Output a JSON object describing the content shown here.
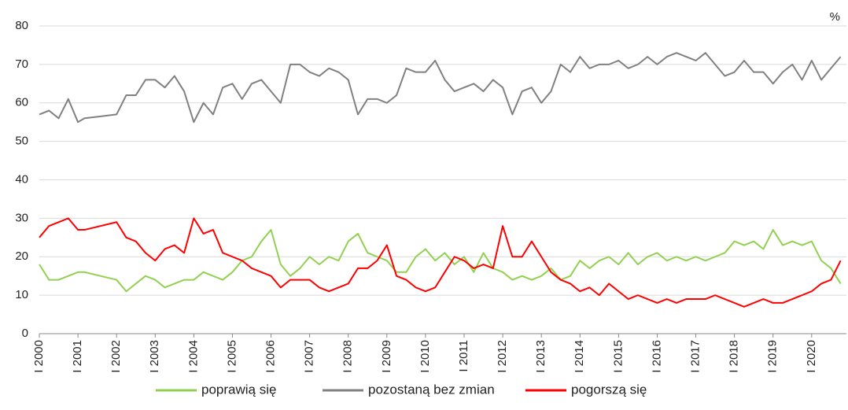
{
  "chart_data": {
    "type": "line",
    "unit": "%",
    "x": [
      2000,
      2000.25,
      2000.5,
      2000.75,
      2001,
      2001.17,
      2002,
      2002.25,
      2002.5,
      2002.75,
      2003,
      2003.25,
      2003.5,
      2003.75,
      2004,
      2004.25,
      2004.5,
      2004.75,
      2005,
      2005.25,
      2005.5,
      2005.75,
      2006,
      2006.25,
      2006.5,
      2006.75,
      2007,
      2007.25,
      2007.5,
      2007.75,
      2008,
      2008.25,
      2008.5,
      2008.75,
      2009,
      2009.25,
      2009.5,
      2009.75,
      2010,
      2010.25,
      2010.5,
      2010.75,
      2011,
      2011.25,
      2011.5,
      2011.75,
      2012,
      2012.25,
      2012.5,
      2012.75,
      2013,
      2013.25,
      2013.5,
      2013.75,
      2014,
      2014.25,
      2014.5,
      2014.75,
      2015,
      2015.25,
      2015.5,
      2015.75,
      2016,
      2016.25,
      2016.5,
      2016.75,
      2017,
      2017.25,
      2017.5,
      2017.75,
      2018,
      2018.25,
      2018.5,
      2018.75,
      2019,
      2019.25,
      2019.5,
      2019.75,
      2020,
      2020.25,
      2020.5,
      2020.75
    ],
    "series": [
      {
        "name": "poprawią się",
        "color": "#92d050",
        "values": [
          18,
          14,
          14,
          15,
          16,
          16,
          14,
          11,
          13,
          15,
          14,
          12,
          13,
          14,
          14,
          16,
          15,
          14,
          16,
          19,
          20,
          24,
          27,
          18,
          15,
          17,
          20,
          18,
          20,
          19,
          24,
          26,
          21,
          20,
          19,
          16,
          16,
          20,
          22,
          19,
          21,
          18,
          20,
          16,
          21,
          17,
          16,
          14,
          15,
          14,
          15,
          17,
          14,
          15,
          19,
          17,
          19,
          20,
          18,
          21,
          18,
          20,
          21,
          19,
          20,
          19,
          20,
          19,
          20,
          21,
          24,
          23,
          24,
          22,
          27,
          23,
          24,
          23,
          24,
          19,
          17,
          13
        ]
      },
      {
        "name": "pozostaną bez zmian",
        "color": "#808080",
        "values": [
          57,
          58,
          56,
          61,
          55,
          56,
          57,
          62,
          62,
          66,
          66,
          64,
          67,
          63,
          55,
          60,
          57,
          64,
          65,
          61,
          65,
          66,
          63,
          60,
          70,
          70,
          68,
          67,
          69,
          68,
          66,
          57,
          61,
          61,
          60,
          62,
          69,
          68,
          68,
          71,
          66,
          63,
          64,
          65,
          63,
          66,
          64,
          57,
          63,
          64,
          60,
          63,
          70,
          68,
          72,
          69,
          70,
          70,
          71,
          69,
          70,
          72,
          70,
          72,
          73,
          72,
          71,
          73,
          70,
          67,
          68,
          71,
          68,
          68,
          65,
          68,
          70,
          66,
          71,
          66,
          69,
          72
        ]
      },
      {
        "name": "pogorszą się",
        "color": "#ff0000",
        "values": [
          25,
          28,
          29,
          30,
          27,
          27,
          29,
          25,
          24,
          21,
          19,
          22,
          23,
          21,
          30,
          26,
          27,
          21,
          20,
          19,
          17,
          16,
          15,
          12,
          14,
          14,
          14,
          12,
          11,
          12,
          13,
          17,
          17,
          19,
          23,
          15,
          14,
          12,
          11,
          12,
          16,
          20,
          19,
          17,
          18,
          17,
          28,
          20,
          20,
          24,
          20,
          16,
          14,
          13,
          11,
          12,
          10,
          13,
          11,
          9,
          10,
          9,
          8,
          9,
          8,
          9,
          9,
          9,
          10,
          9,
          8,
          7,
          8,
          9,
          8,
          8,
          9,
          10,
          11,
          13,
          14,
          19
        ]
      }
    ],
    "xlim": [
      2000,
      2020.9
    ],
    "xticks": [
      {
        "value": 2000,
        "label": "I 2000"
      },
      {
        "value": 2001,
        "label": "I 2001"
      },
      {
        "value": 2002,
        "label": "I 2002"
      },
      {
        "value": 2003,
        "label": "I 2003"
      },
      {
        "value": 2004,
        "label": "I 2004"
      },
      {
        "value": 2005,
        "label": "I 2005"
      },
      {
        "value": 2006,
        "label": "I 2006"
      },
      {
        "value": 2007,
        "label": "I 2007"
      },
      {
        "value": 2008,
        "label": "I 2008"
      },
      {
        "value": 2009,
        "label": "I 2009"
      },
      {
        "value": 2010,
        "label": "I 2010"
      },
      {
        "value": 2011,
        "label": "I 2011"
      },
      {
        "value": 2012,
        "label": "I 2012"
      },
      {
        "value": 2013,
        "label": "I 2013"
      },
      {
        "value": 2014,
        "label": "I 2014"
      },
      {
        "value": 2015,
        "label": "I 2015"
      },
      {
        "value": 2016,
        "label": "I 2016"
      },
      {
        "value": 2017,
        "label": "I 2017"
      },
      {
        "value": 2018,
        "label": "I 2018"
      },
      {
        "value": 2019,
        "label": "I 2019"
      },
      {
        "value": 2020,
        "label": "I 2020"
      }
    ],
    "ylim": [
      0,
      80
    ],
    "yticks": [
      0,
      10,
      20,
      30,
      40,
      50,
      60,
      70,
      80
    ],
    "grid": true,
    "legend": "bottom"
  }
}
